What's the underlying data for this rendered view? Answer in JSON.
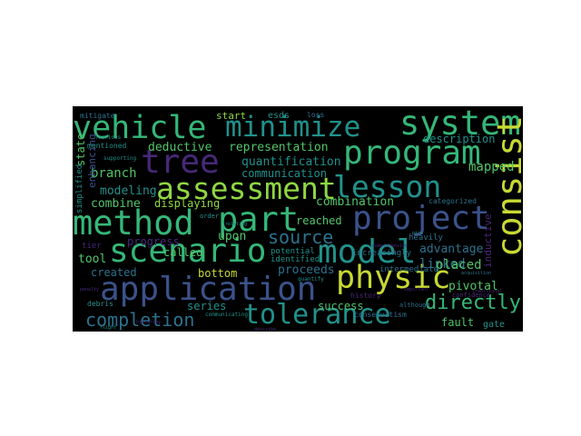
{
  "palette": {
    "yellow": "#c8d933",
    "green": "#35b779",
    "teal": "#21918c",
    "blue": "#3b528b",
    "purple": "#482878",
    "lime": "#8fd744",
    "mint": "#52c569",
    "steel": "#2c728e"
  },
  "words": [
    {
      "text": "vehicle",
      "color": "green"
    },
    {
      "text": "minimize",
      "color": "teal"
    },
    {
      "text": "system",
      "color": "green"
    },
    {
      "text": "program",
      "color": "green"
    },
    {
      "text": "consist",
      "color": "yellow"
    },
    {
      "text": "tree",
      "color": "purple"
    },
    {
      "text": "assessment",
      "color": "lime"
    },
    {
      "text": "lesson",
      "color": "teal"
    },
    {
      "text": "method",
      "color": "green"
    },
    {
      "text": "part",
      "color": "green"
    },
    {
      "text": "project",
      "color": "blue"
    },
    {
      "text": "scenario",
      "color": "green"
    },
    {
      "text": "source",
      "color": "steel"
    },
    {
      "text": "model",
      "color": "teal"
    },
    {
      "text": "physic",
      "color": "yellow"
    },
    {
      "text": "application",
      "color": "blue"
    },
    {
      "text": "tolerance",
      "color": "teal"
    },
    {
      "text": "completion",
      "color": "steel"
    },
    {
      "text": "directly",
      "color": "green"
    },
    {
      "text": "deductive",
      "color": "mint"
    },
    {
      "text": "representation",
      "color": "mint"
    },
    {
      "text": "quantification",
      "color": "teal"
    },
    {
      "text": "communication",
      "color": "teal"
    },
    {
      "text": "branch",
      "color": "mint"
    },
    {
      "text": "modeling",
      "color": "teal"
    },
    {
      "text": "combine",
      "color": "mint"
    },
    {
      "text": "displaying",
      "color": "lime"
    },
    {
      "text": "combination",
      "color": "mint"
    },
    {
      "text": "reached",
      "color": "mint"
    },
    {
      "text": "upon",
      "color": "mint"
    },
    {
      "text": "progress",
      "color": "purple"
    },
    {
      "text": "tool",
      "color": "mint"
    },
    {
      "text": "created",
      "color": "steel"
    },
    {
      "text": "bottom",
      "color": "yellow"
    },
    {
      "text": "proceeds",
      "color": "steel"
    },
    {
      "text": "series",
      "color": "teal"
    },
    {
      "text": "success",
      "color": "mint"
    },
    {
      "text": "fault",
      "color": "mint"
    },
    {
      "text": "advantage",
      "color": "steel"
    },
    {
      "text": "linked",
      "color": "steel"
    },
    {
      "text": "placed",
      "color": "mint"
    },
    {
      "text": "pivotal",
      "color": "mint"
    },
    {
      "text": "mapped",
      "color": "mint"
    },
    {
      "text": "description",
      "color": "teal"
    },
    {
      "text": "start",
      "color": "lime"
    },
    {
      "text": "esds",
      "color": "teal"
    },
    {
      "text": "called",
      "color": "mint"
    },
    {
      "text": "potential",
      "color": "teal"
    },
    {
      "text": "identified",
      "color": "teal"
    },
    {
      "text": "increasingly",
      "color": "steel"
    },
    {
      "text": "intermediate",
      "color": "steel"
    },
    {
      "text": "inductive",
      "color": "purple"
    },
    {
      "text": "state",
      "color": "mint"
    },
    {
      "text": "enhancing",
      "color": "blue"
    },
    {
      "text": "mentioned",
      "color": "teal"
    },
    {
      "text": "gate",
      "color": "teal"
    },
    {
      "text": "categorized",
      "color": "steel"
    },
    {
      "text": "simplified",
      "color": "teal"
    },
    {
      "text": "loss",
      "color": "steel"
    },
    {
      "text": "heavily",
      "color": "steel"
    },
    {
      "text": "conservatism",
      "color": "steel"
    },
    {
      "text": "history",
      "color": "purple"
    },
    {
      "text": "debris",
      "color": "teal"
    },
    {
      "text": "mitigate",
      "color": "steel"
    },
    {
      "text": "communicating",
      "color": "teal"
    },
    {
      "text": "confidence",
      "color": "purple"
    },
    {
      "text": "tier",
      "color": "purple"
    },
    {
      "text": "various",
      "color": "teal"
    },
    {
      "text": "supporting",
      "color": "teal"
    },
    {
      "text": "order",
      "color": "teal"
    },
    {
      "text": "quantify",
      "color": "teal"
    },
    {
      "text": "although",
      "color": "steel"
    },
    {
      "text": "pick",
      "color": "teal"
    },
    {
      "text": "comprehensive",
      "color": "purple"
    },
    {
      "text": "flight",
      "color": "teal"
    },
    {
      "text": "acquisition",
      "color": "steel"
    },
    {
      "text": "important",
      "color": "purple"
    },
    {
      "text": "traditional",
      "color": "purple"
    },
    {
      "text": "penalty",
      "color": "purple"
    },
    {
      "text": "hierarchy",
      "color": "purple"
    },
    {
      "text": "describe",
      "color": "purple"
    },
    {
      "text": "relating",
      "color": "teal"
    }
  ]
}
